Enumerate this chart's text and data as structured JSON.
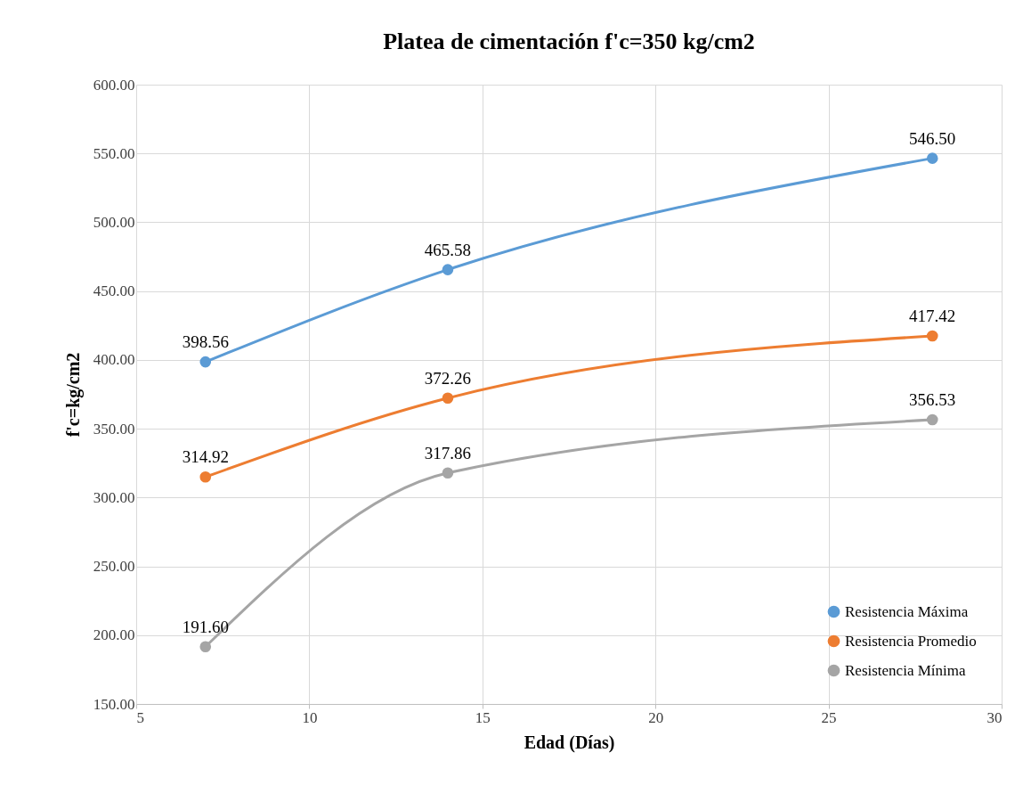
{
  "chart_data": {
    "type": "line",
    "title": "Platea de cimentación f'c=350 kg/cm2",
    "xlabel": "Edad (Días)",
    "ylabel": "f'c=kg/cm2",
    "x": [
      7,
      14,
      28
    ],
    "series": [
      {
        "name": "Resistencia Máxima",
        "color": "#5b9bd5",
        "values": [
          398.56,
          465.58,
          546.5
        ],
        "value_labels": [
          "398.56",
          "465.58",
          "546.50"
        ]
      },
      {
        "name": "Resistencia Promedio",
        "color": "#ed7d31",
        "values": [
          314.92,
          372.26,
          417.42
        ],
        "value_labels": [
          "314.92",
          "372.26",
          "417.42"
        ]
      },
      {
        "name": "Resistencia Mínima",
        "color": "#a5a5a5",
        "values": [
          191.6,
          317.86,
          356.53
        ],
        "value_labels": [
          "191.60",
          "317.86",
          "356.53"
        ]
      }
    ],
    "xlim": [
      5,
      30
    ],
    "xticks": [
      5,
      10,
      15,
      20,
      25,
      30
    ],
    "ylim": [
      150,
      600
    ],
    "yticks": [
      {
        "value": 150,
        "label": "150.00"
      },
      {
        "value": 200,
        "label": "200.00"
      },
      {
        "value": 250,
        "label": "250.00"
      },
      {
        "value": 300,
        "label": "300.00"
      },
      {
        "value": 350,
        "label": "350.00"
      },
      {
        "value": 400,
        "label": "400.00"
      },
      {
        "value": 450,
        "label": "450.00"
      },
      {
        "value": 500,
        "label": "500.00"
      },
      {
        "value": 550,
        "label": "550.00"
      },
      {
        "value": 600,
        "label": "600.00"
      }
    ],
    "grid": true,
    "legend": "bottom right",
    "marker": "circle",
    "line_style": "solid"
  }
}
